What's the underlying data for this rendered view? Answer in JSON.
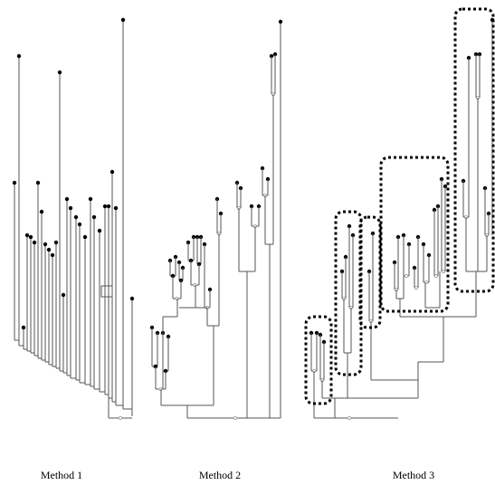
{
  "figure": {
    "panels": [
      {
        "label": "Method 1"
      },
      {
        "label": "Method 2"
      },
      {
        "label": "Method 3"
      }
    ]
  },
  "style": {
    "line_color": "#555555",
    "node_color": "#000000",
    "outline_color": "#000000",
    "background": "#ffffff"
  }
}
